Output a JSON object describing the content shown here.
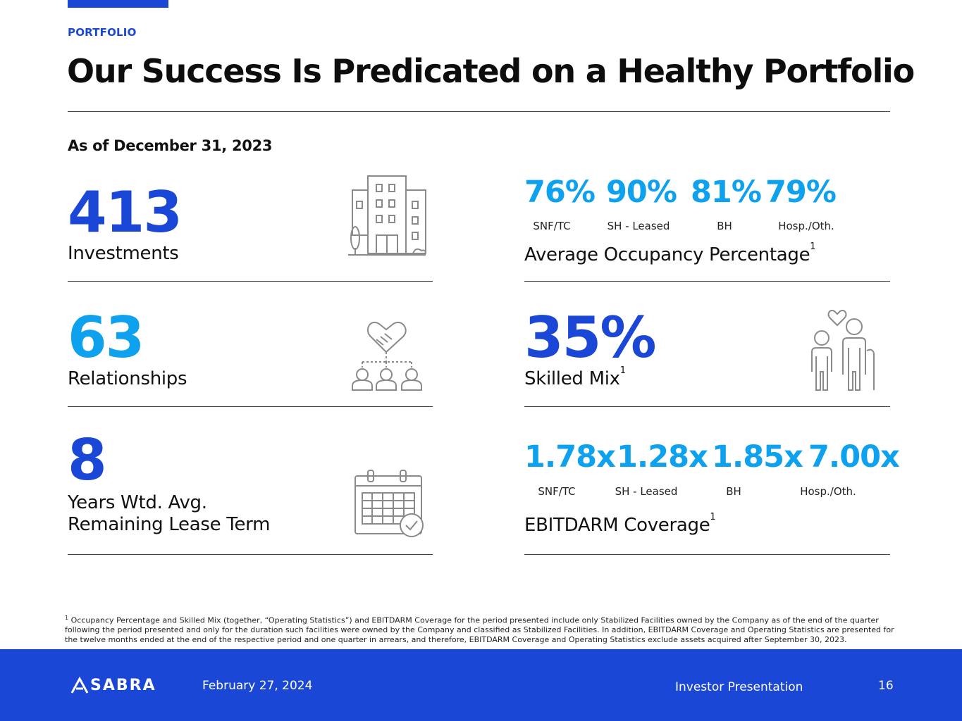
{
  "header": {
    "section": "PORTFOLIO",
    "title": "Our Success Is Predicated on a Healthy Portfolio",
    "as_of": "As of December 31, 2023"
  },
  "metrics": {
    "investments": {
      "value": "413",
      "label": "Investments"
    },
    "relationships": {
      "value": "63",
      "label": "Relationships"
    },
    "lease_term": {
      "value": "8",
      "label_line1": "Years Wtd. Avg.",
      "label_line2": "Remaining Lease Term"
    },
    "occupancy": {
      "label": "Average Occupancy Percentage",
      "footnote_ref": "1",
      "items": [
        {
          "value": "76%",
          "category": "SNF/TC"
        },
        {
          "value": "90%",
          "category": "SH - Leased"
        },
        {
          "value": "81%",
          "category": "BH"
        },
        {
          "value": "79%",
          "category": "Hosp./Oth."
        }
      ]
    },
    "skilled_mix": {
      "value": "35%",
      "label": "Skilled Mix",
      "footnote_ref": "1"
    },
    "ebitdarm": {
      "label": "EBITDARM Coverage",
      "footnote_ref": "1",
      "items": [
        {
          "value": "1.78x",
          "category": "SNF/TC"
        },
        {
          "value": "1.28x",
          "category": "SH - Leased"
        },
        {
          "value": "1.85x",
          "category": "BH"
        },
        {
          "value": "7.00x",
          "category": "Hosp./Oth."
        }
      ]
    }
  },
  "footnote": {
    "marker": "1",
    "text": "Occupancy Percentage and Skilled Mix (together, “Operating Statistics”) and EBITDARM Coverage for the period presented include only Stabilized Facilities owned by the Company as of the end of the quarter following the period presented and only for the duration such facilities were owned by the Company and classified as Stabilized Facilities. In addition, EBITDARM Coverage and Operating Statistics are presented for the twelve months ended at the end of the respective period and one quarter in arrears, and therefore, EBITDARM Coverage and Operating Statistics exclude assets acquired after September 30, 2023."
  },
  "footer": {
    "logo_text": "SABRA",
    "date": "February 27, 2024",
    "presentation": "Investor Presentation",
    "page_number": "16"
  },
  "colors": {
    "primary": "#1a47d6",
    "accent": "#0da1ee",
    "icon": "#8a8a8a"
  },
  "icons": [
    "building-icon",
    "handshake-network-icon",
    "calendar-check-icon",
    "elderly-couple-icon",
    "sabra-logo-icon"
  ]
}
